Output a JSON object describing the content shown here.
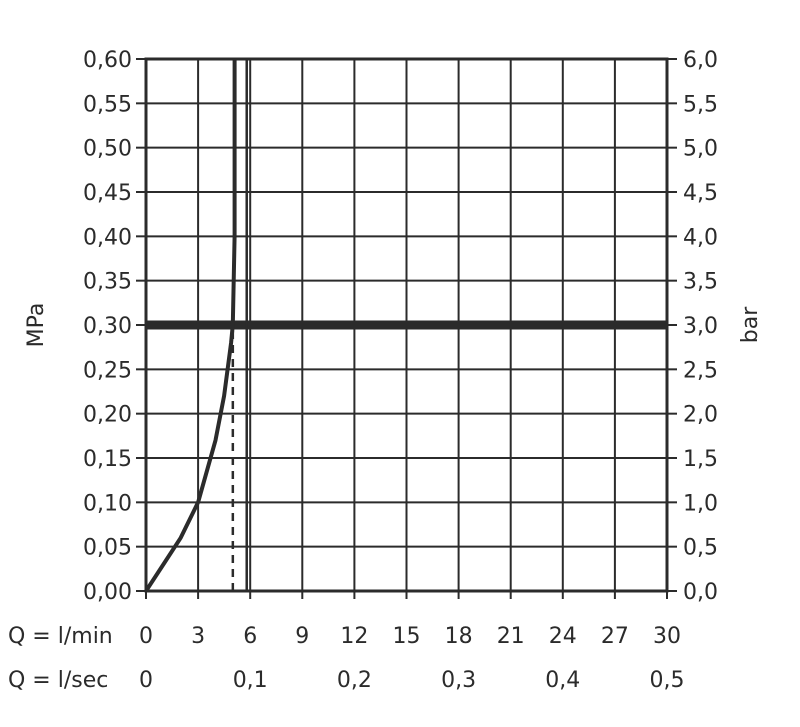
{
  "chart_data": {
    "type": "line",
    "y_left": {
      "label": "MPa",
      "lim": [
        0,
        0.6
      ],
      "ticks": [
        "0,00",
        "0,05",
        "0,10",
        "0,15",
        "0,20",
        "0,25",
        "0,30",
        "0,35",
        "0,40",
        "0,45",
        "0,50",
        "0,55",
        "0,60"
      ]
    },
    "y_right": {
      "label": "bar",
      "lim": [
        0,
        6
      ],
      "ticks": [
        "0,0",
        "0,5",
        "1,0",
        "1,5",
        "2,0",
        "2,5",
        "3,0",
        "3,5",
        "4,0",
        "4,5",
        "5,0",
        "5,5",
        "6,0"
      ]
    },
    "x_lmin": {
      "label": "Q = l/min",
      "lim": [
        0,
        30
      ],
      "tick_values": [
        0,
        3,
        6,
        9,
        12,
        15,
        18,
        21,
        24,
        27,
        30
      ],
      "ticks": [
        "0",
        "3",
        "6",
        "9",
        "12",
        "15",
        "18",
        "21",
        "24",
        "27",
        "30"
      ]
    },
    "x_lsec": {
      "label": "Q = l/sec",
      "tick_values": [
        0,
        0.1,
        0.2,
        0.3,
        0.4,
        0.5
      ],
      "ticks": [
        "0",
        "0,1",
        "0,2",
        "0,3",
        "0,4",
        "0,5"
      ]
    },
    "grid": true,
    "series": [
      {
        "x": [
          0,
          1,
          2,
          3,
          4,
          4.5,
          4.9,
          5.0,
          5.1,
          5.1,
          5.1
        ],
        "y": [
          0,
          0.03,
          0.06,
          0.1,
          0.17,
          0.22,
          0.28,
          0.3,
          0.4,
          0.5,
          0.6
        ]
      }
    ],
    "reference_lines": [
      {
        "orientation": "horizontal",
        "y": 0.3,
        "style": "thick"
      },
      {
        "orientation": "vertical",
        "x": 5.0,
        "y_to": 0.3,
        "style": "dashed"
      },
      {
        "orientation": "vertical",
        "x": 5.8,
        "style": "solid"
      }
    ],
    "colors": {
      "ink": "#2b2b2b",
      "background": "#ffffff"
    }
  }
}
